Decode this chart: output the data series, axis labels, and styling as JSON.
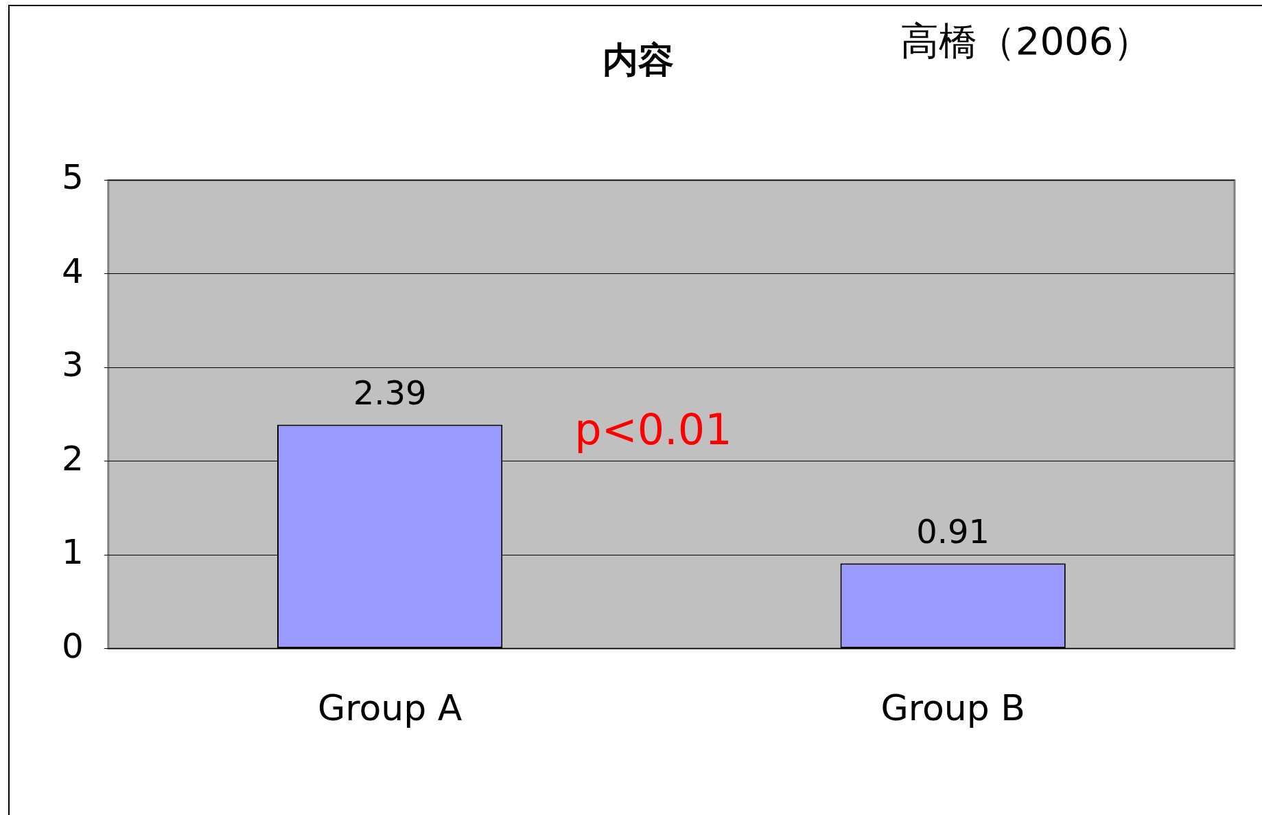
{
  "chart_data": {
    "type": "bar",
    "title": "内容",
    "annotations": [
      "高橋（2006）",
      "p<0.01"
    ],
    "categories": [
      "Group A",
      "Group B"
    ],
    "values": [
      2.39,
      0.91
    ],
    "color": "#9999ff",
    "ylim": [
      0,
      5
    ],
    "yticks": [
      0,
      1,
      2,
      3,
      4,
      5
    ],
    "grid": "y",
    "data_labels": true,
    "legend": false
  }
}
